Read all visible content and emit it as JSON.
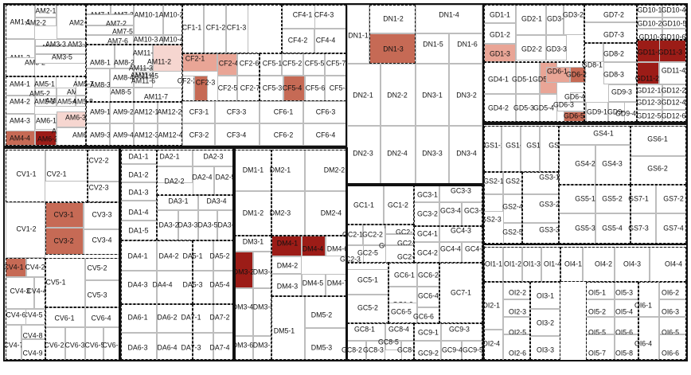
{
  "sections": [
    "AM",
    "CF",
    "DN",
    "GD",
    "CV",
    "DA",
    "DM",
    "GS",
    "GC",
    "OI"
  ],
  "heat_levels": {
    "heat1": "#f6d6d0",
    "heat2": "#e9a596",
    "heat3": "#c66a55",
    "heat4": "#9c1c17"
  },
  "labels": {
    "AM1-1": "AM1-1",
    "AM2-1": "AM2-1",
    "AM2-2": "AM2-2",
    "AM2-3": "AM2-3",
    "AM3-1": "AM3-1",
    "AM3-2": "AM3-2",
    "AM3-3": "AM3-3",
    "AM3-4": "AM3-4",
    "AM3-5": "AM3-5",
    "AM1-2": "AM1-2",
    "AM7-1": "AM7-1",
    "AM7-3": "AM7-3",
    "AM7-2": "AM7-2",
    "AM7-4": "AM7-4",
    "AM7-5": "AM7-5",
    "AM7-6": "AM7-6",
    "AM10-1": "AM10-1",
    "AM10-2": "AM10-2",
    "AM10-3": "AM10-3",
    "AM10-4": "AM10-4",
    "AM8-1": "AM8-1",
    "AM8-2": "AM8-2",
    "AM8-3": "AM8-3",
    "AM8-4": "AM8-4",
    "AM8-5": "AM8-5",
    "AM11-1": "AM11-1",
    "AM11-2": "AM11-2",
    "AM11-3": "AM11-3",
    "AM11-4": "AM11-4",
    "AM11-5": "AM11-5",
    "AM11-6": "AM11-6",
    "AM11-7": "AM11-7",
    "AM4-1": "AM4-1",
    "AM5-1": "AM5-1",
    "AM4-2": "AM4-2",
    "AM5-2": "AM5-2",
    "AM5-3": "AM5-3",
    "AM5-4": "AM5-4",
    "AM5-5": "AM5-5",
    "AM5-6": "AM5-6",
    "AM5-7": "AM5-7",
    "AM5-8": "AM5-8",
    "AM4-3": "AM4-3",
    "AM4-4": "AM4-4",
    "AM6-1": "AM6-1",
    "AM6-2": "AM6-2",
    "AM6-3": "AM6-3",
    "AM6-4": "AM6-4",
    "AM6-5": "AM6-5",
    "AM9-1": "AM9-1",
    "AM9-2": "AM9-2",
    "AM9-3": "AM9-3",
    "AM9-4": "AM9-4",
    "AM12-1": "AM12-1",
    "AM12-2": "AM12-2",
    "AM12-3": "AM12-3",
    "AM12-4": "AM12-4",
    "CF1-1": "CF1-1",
    "CF1-2": "CF1-2",
    "CF1-3": "CF1-3",
    "CF4-1": "CF4-1",
    "CF4-2": "CF4-2",
    "CF4-3": "CF4-3",
    "CF4-4": "CF4-4",
    "CF2-1": "CF2-1",
    "CF2-2": "CF2-2",
    "CF2-3": "CF2-3",
    "CF2-4": "CF2-4",
    "CF2-5": "CF2-5",
    "CF2-6": "CF2-6",
    "CF2-7": "CF2-7",
    "CF5-1": "CF5-1",
    "CF5-2": "CF5-2",
    "CF5-3": "CF5-3",
    "CF5-4": "CF5-4",
    "CF5-5": "CF5-5",
    "CF5-6": "CF5-6",
    "CF5-7": "CF5-7",
    "CF5-8": "CF5-8",
    "CF3-1": "CF3-1",
    "CF3-2": "CF3-2",
    "CF3-3": "CF3-3",
    "CF3-4": "CF3-4",
    "CF6-1": "CF6-1",
    "CF6-2": "CF6-2",
    "CF6-3": "CF6-3",
    "CF6-4": "CF6-4",
    "DN1-1": "DN1-1",
    "DN1-2": "DN1-2",
    "DN1-3": "DN1-3",
    "DN1-4": "DN1-4",
    "DN1-5": "DN1-5",
    "DN1-6": "DN1-6",
    "DN2-1": "DN2-1",
    "DN2-2": "DN2-2",
    "DN2-3": "DN2-3",
    "DN2-4": "DN2-4",
    "DN3-1": "DN3-1",
    "DN3-2": "DN3-2",
    "DN3-3": "DN3-3",
    "DN3-4": "DN3-4",
    "GD1-1": "GD1-1",
    "GD1-2": "GD1-2",
    "GD1-3": "GD1-3",
    "GD2-1": "GD2-1",
    "GD2-2": "GD2-2",
    "GD3-1": "GD3-1",
    "GD3-2": "GD3-2",
    "GD3-3": "GD3-3",
    "GD7-1": "GD7-1",
    "GD7-2": "GD7-2",
    "GD7-3": "GD7-3",
    "GD10-1": "GD10-1",
    "GD10-2": "GD10-2",
    "GD10-3": "GD10-3",
    "GD10-4": "GD10-4",
    "GD10-5": "GD10-5",
    "GD10-6": "GD10-6",
    "GD4-1": "GD4-1",
    "GD4-2": "GD4-2",
    "GD5-1": "GD5-1",
    "GD5-2": "GD5-2",
    "GD5-3": "GD5-3",
    "GD5-4": "GD5-4",
    "GD6-1": "GD6-1",
    "GD6-2": "GD6-2",
    "GD6-3": "GD6-3",
    "GD6-4": "GD6-4",
    "GD6-5": "GD6-5",
    "GD8-1": "GD8-1",
    "GD8-2": "GD8-2",
    "GD8-3": "GD8-3",
    "GD9-1": "GD9-1",
    "GD9-2": "GD9-2",
    "GD9-3": "GD9-3",
    "GD9-4": "GD9-4",
    "GD11-1": "GD11-1",
    "GD11-2": "GD11-2",
    "GD11-3": "GD11-3",
    "GD11-4": "GD11-4",
    "GD12-1": "GD12-1",
    "GD12-2": "GD12-2",
    "GD12-3": "GD12-3",
    "GD12-4": "GD12-4",
    "GD12-5": "GD12-5",
    "GD12-6": "GD12-6",
    "CV1-1": "CV1-1",
    "CV1-2": "CV1-2",
    "CV2-1": "CV2-1",
    "CV2-2": "CV2-2",
    "CV2-3": "CV2-3",
    "CV3-1": "CV3-1",
    "CV3-2": "CV3-2",
    "CV3-3": "CV3-3",
    "CV3-4": "CV3-4",
    "CV4-1": "CV4-1",
    "CV4-2": "CV4-2",
    "CV4-3": "CV4-3",
    "CV4-4": "CV4-4",
    "CV4-5": "CV4-5",
    "CV4-6": "CV4-6",
    "CV4-7": "CV4-7",
    "CV4-8": "CV4-8",
    "CV4-9": "CV4-9",
    "CV5-1": "CV5-1",
    "CV5-2": "CV5-2",
    "CV5-3": "CV5-3",
    "CV6-1": "CV6-1",
    "CV6-2": "CV6-2",
    "CV6-3": "CV6-3",
    "CV6-4": "CV6-4",
    "CV6-5": "CV6-5",
    "CV6-6": "CV6-6",
    "DA1-1": "DA1-1",
    "DA1-2": "DA1-2",
    "DA1-3": "DA1-3",
    "DA1-4": "DA1-4",
    "DA1-5": "DA1-5",
    "DA2-1": "DA2-1",
    "DA2-2": "DA2-2",
    "DA2-3": "DA2-3",
    "DA2-4": "DA2-4",
    "DA2-5": "DA2-5",
    "DA3-1": "DA3-1",
    "DA3-2": "DA3-2",
    "DA3-3": "DA3-3",
    "DA3-4": "DA3-4",
    "DA3-5": "DA3-5",
    "DA3-6": "DA3-6",
    "DA4-1": "DA4-1",
    "DA4-2": "DA4-2",
    "DA4-3": "DA4-3",
    "DA4-4": "DA4-4",
    "DA5-1": "DA5-1",
    "DA5-2": "DA5-2",
    "DA5-3": "DA5-3",
    "DA5-4": "DA5-4",
    "DA6-1": "DA6-1",
    "DA6-2": "DA6-2",
    "DA6-3": "DA6-3",
    "DA6-4": "DA6-4",
    "DA7-1": "DA7-1",
    "DA7-2": "DA7-2",
    "DA7-3": "DA7-3",
    "DA7-4": "DA7-4",
    "DM1-1": "DM1-1",
    "DM1-2": "DM1-2",
    "DM2-1": "DM2-1",
    "DM2-2": "DM2-2",
    "DM2-3": "DM2-3",
    "DM2-4": "DM2-4",
    "DM3-1": "DM3-1",
    "DM3-2": "DM3-2",
    "DM3-3": "DM3-3",
    "DM3-4": "DM3-4",
    "DM3-5": "DM3-5",
    "DM3-6": "DM3-6",
    "DM3-7": "DM3-7",
    "DM4-1": "DM4-1",
    "DM4-2": "DM4-2",
    "DM4-3": "DM4-3",
    "DM4-4": "DM4-4",
    "DM4-5": "DM4-5",
    "DM4-6": "DM4-6",
    "DM4-7": "DM4-7",
    "DM5-1": "DM5-1",
    "DM5-2": "DM5-2",
    "DM5-3": "DM5-3",
    "GS1-1": "GS1-1",
    "GS1-2": "GS1-2",
    "GS1-3": "GS1-3",
    "GS1-4": "GS1-4",
    "GS2-1": "GS2-1",
    "GS2-2": "GS2-2",
    "GS2-3": "GS2-3",
    "GS2-4": "GS2-4",
    "GS2-5": "GS2-5",
    "GS3-1": "GS3-1",
    "GS3-2": "GS3-2",
    "GS3-3": "GS3-3",
    "GS4-1": "GS4-1",
    "GS4-2": "GS4-2",
    "GS4-3": "GS4-3",
    "GS5-1": "GS5-1",
    "GS5-2": "GS5-2",
    "GS5-3": "GS5-3",
    "GS5-4": "GS5-4",
    "GS6-1": "GS6-1",
    "GS6-2": "GS6-2",
    "GS7-1": "GS7-1",
    "GS7-2": "GS7-2",
    "GS7-3": "GS7-3",
    "GS7-4": "GS7-4",
    "GC1-1": "GC1-1",
    "GC1-2": "GC1-2",
    "GC2-1": "GC2-1",
    "GC2-2": "GC2-2",
    "GC2-3": "GC2-3",
    "GC2-4": "GC2-4",
    "GC2-5": "GC2-5",
    "GC2-6": "GC2-6",
    "GC2-7": "GC2-7",
    "GC2-8": "GC2-8",
    "GC2-9": "GC2-9",
    "GC3-1": "GC3-1",
    "GC3-2": "GC3-2",
    "GC3-3": "GC3-3",
    "GC3-4": "GC3-4",
    "GC3-5": "GC3-5",
    "GC4-1": "GC4-1",
    "GC4-2": "GC4-2",
    "GC4-3": "GC4-3",
    "GC4-4": "GC4-4",
    "GC4-5": "GC4-5",
    "GC5-1": "GC5-1",
    "GC5-2": "GC5-2",
    "GC6-1": "GC6-1",
    "GC6-2": "GC6-2",
    "GC6-3": "GC6-3",
    "GC6-4": "GC6-4",
    "GC6-5": "GC6-5",
    "GC6-6": "GC6-6",
    "GC7-1": "GC7-1",
    "GC8-1": "GC8-1",
    "GC8-2": "GC8-2",
    "GC8-3": "GC8-3",
    "GC8-4": "GC8-4",
    "GC8-5": "GC8-5",
    "GC8-6": "GC8-6",
    "GC9-1": "GC9-1",
    "GC9-2": "GC9-2",
    "GC9-3": "GC9-3",
    "GC9-4": "GC9-4",
    "GC9-5": "GC9-5",
    "OI1-1": "OI1-1",
    "OI1-2": "OI1-2",
    "OI1-3": "OI1-3",
    "OI1-4": "OI1-4",
    "OI2-1": "OI2-1",
    "OI2-2": "OI2-2",
    "OI2-3": "OI2-3",
    "OI2-4": "OI2-4",
    "OI2-5": "OI2-5",
    "OI2-6": "OI2-6",
    "OI3-1": "OI3-1",
    "OI3-2": "OI3-2",
    "OI3-3": "OI3-3",
    "OI4-1": "OI4-1",
    "OI4-2": "OI4-2",
    "OI4-3": "OI4-3",
    "OI4-4": "OI4-4",
    "OI5-1": "OI5-1",
    "OI5-2": "OI5-2",
    "OI5-3": "OI5-3",
    "OI5-4": "OI5-4",
    "OI5-5": "OI5-5",
    "OI5-6": "OI5-6",
    "OI5-7": "OI5-7",
    "OI5-8": "OI5-8",
    "OI6-1": "OI6-1",
    "OI6-2": "OI6-2",
    "OI6-3": "OI6-3",
    "OI6-4": "OI6-4",
    "OI6-5": "OI6-5",
    "OI6-6": "OI6-6"
  }
}
